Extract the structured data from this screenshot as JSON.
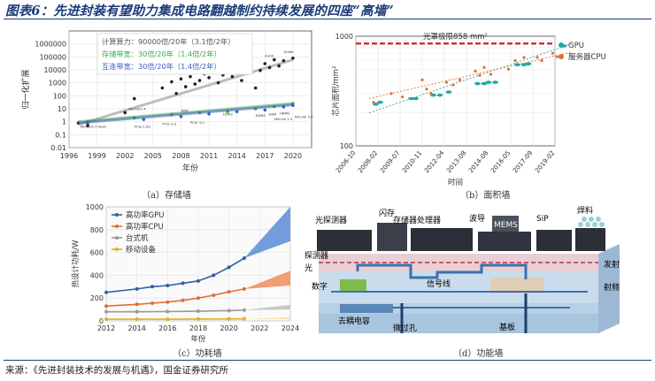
{
  "title": "图表6：先进封装有望助力集成电路翻越制约持续发展的四座“高墙”",
  "source": "来源：《先进封装技术的发展与机遇》，国金证券研究所",
  "chart_data": [
    {
      "id": "a",
      "type": "scatter",
      "caption": "（a）存储墙",
      "xlabel": "年份",
      "ylabel": "归一化扩展",
      "xlim": [
        1996,
        2022
      ],
      "ylim": [
        0.01,
        10000000
      ],
      "yscale": "log",
      "xticks": [
        "1996",
        "1999",
        "2002",
        "2005",
        "2008",
        "2011",
        "2014",
        "2017",
        "2020"
      ],
      "yticks": [
        "0.01",
        "0.1",
        "1",
        "10",
        "100",
        "1000",
        "10000",
        "100000",
        "1000000"
      ],
      "legend": [
        {
          "text": "计算算力：90000倍/20年（3.1倍/2年）",
          "color": "#555555"
        },
        {
          "text": "存储带宽：30倍/20年（1.4倍/2年）",
          "color": "#3aa84a"
        },
        {
          "text": "互连带宽：30倍/20年（1.4倍/2年）",
          "color": "#3c5fc2"
        }
      ],
      "series": [
        {
          "name": "计算算力",
          "color": "#222222",
          "trend": [
            [
              1997,
              0.6
            ],
            [
              2020,
              60000
            ]
          ],
          "points": [
            [
              1997,
              0.8
            ],
            [
              1998,
              0.5
            ],
            [
              2002,
              5
            ],
            [
              2003,
              60
            ],
            [
              2006,
              400
            ],
            [
              2007,
              1200
            ],
            [
              2007.5,
              150
            ],
            [
              2008,
              2000
            ],
            [
              2008.5,
              500
            ],
            [
              2009,
              3000
            ],
            [
              2009.5,
              800
            ],
            [
              2010,
              1500
            ],
            [
              2010.5,
              5000
            ],
            [
              2011,
              2500
            ],
            [
              2011.5,
              8000
            ],
            [
              2012,
              1000
            ],
            [
              2012.5,
              4000
            ],
            [
              2013,
              6000
            ],
            [
              2013.5,
              3000
            ],
            [
              2014,
              10000
            ],
            [
              2014.5,
              1500
            ],
            [
              2015,
              8000
            ],
            [
              2015.5,
              20000
            ],
            [
              2016,
              400
            ],
            [
              2016.5,
              9000
            ],
            [
              2017,
              30000
            ],
            [
              2017.5,
              15000
            ],
            [
              2018,
              60000
            ],
            [
              2018.5,
              20000
            ],
            [
              2019,
              50000
            ],
            [
              2020,
              80000
            ]
          ]
        },
        {
          "name": "存储带宽",
          "color": "#3aa84a",
          "trend": [
            [
              1997,
              1
            ],
            [
              2020,
              25
            ]
          ],
          "points": [
            [
              1998,
              1
            ],
            [
              2003,
              2
            ],
            [
              2007,
              3.5
            ],
            [
              2010,
              5
            ],
            [
              2013,
              6
            ],
            [
              2016,
              10
            ],
            [
              2018,
              15
            ],
            [
              2020,
              25
            ]
          ]
        },
        {
          "name": "互连带宽",
          "color": "#3c5fc2",
          "trend": [
            [
              1997,
              0.8
            ],
            [
              2020,
              20
            ]
          ],
          "points": [
            [
              1998,
              0.8
            ],
            [
              2004,
              1.5
            ],
            [
              2008,
              2.5
            ],
            [
              2011,
              4
            ],
            [
              2014,
              6
            ],
            [
              2017,
              8
            ],
            [
              2019,
              14
            ],
            [
              2020,
              18
            ]
          ]
        }
      ],
      "annotations": [
        "Pentium II Xeon",
        "Pentium 4",
        "Pentium 4 Xeon",
        "DDR",
        "DDR2",
        "DDR3",
        "DDR4",
        "HBM",
        "HBM2",
        "GDDR6",
        "PCIe 1.0a",
        "PCIe 2.0",
        "PCIe 3.0",
        "PCIe 4.0",
        "PCIe 5.0",
        "NVLink 1.0",
        "NVLink 2.0",
        "NVLink 3.0",
        "Tesla",
        "TPUv3",
        "Shoryu",
        "A100",
        "XLNet",
        "Transformer"
      ]
    },
    {
      "id": "b",
      "type": "scatter",
      "caption": "（b）面积墙",
      "xlabel": "时间",
      "ylabel": "芯片面积/mm²",
      "yscale": "log",
      "ylim": [
        100,
        1000
      ],
      "yticks": [
        "100",
        "1000"
      ],
      "xticks": [
        "2006-10",
        "2008-02",
        "2009-07",
        "2010-11",
        "2012-04",
        "2013-08",
        "2014-08",
        "2016-05",
        "2017-09",
        "2019-02"
      ],
      "limit_label": "光罩极限858 mm²",
      "limit_value": 858,
      "legend": [
        {
          "text": "GPU",
          "color": "#2aa6a6"
        },
        {
          "text": "服务器CPU",
          "color": "#e07030"
        }
      ],
      "series": [
        {
          "name": "GPU",
          "color": "#2aa6a6",
          "marker": "ellipse",
          "points": [
            [
              0.9,
              240
            ],
            [
              1.1,
              250
            ],
            [
              2.5,
              270
            ],
            [
              2.7,
              270
            ],
            [
              3.5,
              290
            ],
            [
              3.8,
              290
            ],
            [
              4.2,
              310
            ],
            [
              5.5,
              370
            ],
            [
              5.8,
              370
            ],
            [
              6,
              380
            ],
            [
              6.3,
              380
            ],
            [
              7.3,
              550
            ],
            [
              7.6,
              550
            ],
            [
              7.8,
              560
            ],
            [
              9.4,
              815
            ]
          ]
        },
        {
          "name": "服务器CPU",
          "color": "#e07030",
          "marker": "dot",
          "points": [
            [
              0.8,
              250
            ],
            [
              1.6,
              300
            ],
            [
              2.1,
              280
            ],
            [
              3.0,
              400
            ],
            [
              3.2,
              330
            ],
            [
              3.4,
              300
            ],
            [
              4.1,
              380
            ],
            [
              4.4,
              360
            ],
            [
              4.7,
              400
            ],
            [
              5.4,
              480
            ],
            [
              5.6,
              440
            ],
            [
              5.8,
              520
            ],
            [
              6.1,
              450
            ],
            [
              6.9,
              500
            ],
            [
              7.2,
              600
            ],
            [
              7.6,
              640
            ],
            [
              8.2,
              640
            ],
            [
              8.4,
              600
            ],
            [
              8.9,
              700
            ],
            [
              9.1,
              650
            ]
          ]
        }
      ],
      "trends": [
        {
          "color": "#2aa6a6",
          "from": [
            0.6,
            200
          ],
          "to": [
            9.8,
            860
          ]
        },
        {
          "color": "#e07030",
          "from": [
            0.6,
            270
          ],
          "to": [
            9.8,
            720
          ]
        }
      ]
    },
    {
      "id": "c",
      "type": "line",
      "caption": "（c）功耗墙",
      "xlabel": "年份",
      "ylabel": "热设计功耗/W",
      "xlim": [
        2012,
        2024
      ],
      "ylim": [
        0,
        1000
      ],
      "xticks": [
        "2012",
        "2014",
        "2016",
        "2018",
        "2020",
        "2022",
        "2024"
      ],
      "yticks": [
        "0",
        "200",
        "400",
        "600",
        "800",
        "1000"
      ],
      "series": [
        {
          "name": "高功率GPU",
          "color": "#2e5fa8",
          "x": [
            2012,
            2014,
            2015,
            2016,
            2017,
            2018,
            2019,
            2020,
            2021
          ],
          "values": [
            250,
            280,
            300,
            310,
            330,
            350,
            400,
            470,
            550
          ]
        },
        {
          "name": "高功率CPU",
          "color": "#e07030",
          "x": [
            2012,
            2014,
            2015,
            2016,
            2017,
            2018,
            2019,
            2020,
            2021
          ],
          "values": [
            130,
            145,
            155,
            165,
            180,
            200,
            225,
            255,
            280
          ]
        },
        {
          "name": "台式机",
          "color": "#999999",
          "x": [
            2012,
            2014,
            2016,
            2018,
            2020,
            2021
          ],
          "values": [
            80,
            80,
            82,
            85,
            90,
            95
          ]
        },
        {
          "name": "移动设备",
          "color": "#e0b020",
          "x": [
            2012,
            2014,
            2016,
            2018,
            2020,
            2021
          ],
          "values": [
            15,
            15,
            15,
            16,
            17,
            18
          ]
        }
      ],
      "projections": [
        {
          "series": "高功率GPU",
          "color": "#5b8bd6",
          "from": 2021,
          "to": 2024,
          "low_end": 700,
          "high_end": 1000,
          "start": 550
        },
        {
          "series": "高功率CPU",
          "color": "#f08c5a",
          "from": 2021,
          "to": 2024,
          "low_end": 310,
          "high_end": 440,
          "start": 280
        },
        {
          "series": "台式机",
          "color": "#bbbbbb",
          "from": 2021,
          "to": 2024,
          "low_end": 100,
          "high_end": 140,
          "start": 95
        },
        {
          "series": "移动设备",
          "color": "#f0d060",
          "from": 2021,
          "to": 2024,
          "low_end": 18,
          "high_end": 28,
          "start": 18
        }
      ]
    }
  ],
  "diagram_d": {
    "caption": "（d）功能墙",
    "labels": {
      "optical_detector": "光探测器",
      "flash": "闪存",
      "memory_processor": "存储器处理器",
      "waveguide": "波导",
      "mems": "MEMS",
      "sip": "SiP",
      "solder": "焊料",
      "detector": "探测器",
      "light": "光",
      "emit": "发射",
      "signal_line": "信号线",
      "digital": "数字",
      "rf": "射频",
      "decap": "去耦电容",
      "via": "微过孔",
      "substrate": "基板"
    }
  }
}
